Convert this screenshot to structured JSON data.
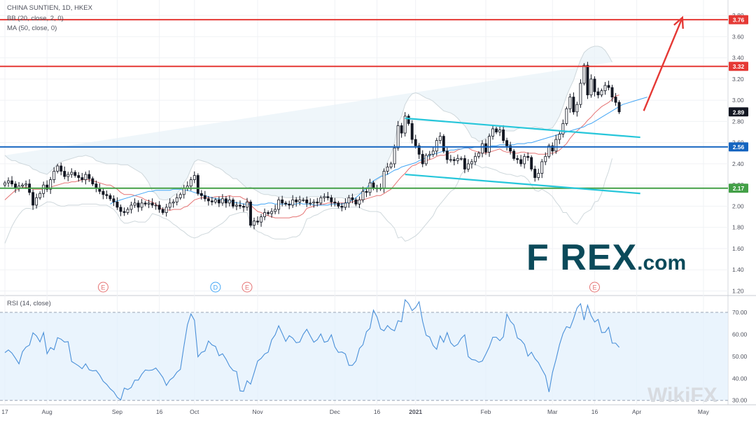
{
  "header": {
    "symbol_line": "CHINA SUNTIEN, 1D, HKEX",
    "bb_line": "BB (20, close, 2, 0)",
    "ma_line": "MA (50, close, 0)",
    "rsi_line": "RSI (14, close)"
  },
  "branding": {
    "logo_main": "F  REX",
    "logo_suffix": ".com",
    "watermark": "WikiFX"
  },
  "chart_data": [
    {
      "type": "candlestick",
      "title": "CHINA SUNTIEN, 1D, HKEX",
      "y_ticks": [
        "1.20",
        "1.40",
        "1.60",
        "1.80",
        "2.00",
        "2.20",
        "2.40",
        "2.60",
        "2.80",
        "3.00",
        "3.20",
        "3.40",
        "3.60",
        "3.80"
      ],
      "ylim": [
        1.17,
        3.88
      ],
      "x_ticks": [
        "17",
        "Aug",
        "Sep",
        "16",
        "Oct",
        "Nov",
        "Dec",
        "16",
        "2021",
        "Feb",
        "Mar",
        "16",
        "Apr",
        "May"
      ],
      "x_tick_index": [
        0,
        12,
        32,
        44,
        54,
        72,
        94,
        106,
        117,
        137,
        156,
        168,
        180,
        199
      ],
      "close": [
        2.22,
        2.24,
        2.21,
        2.17,
        2.19,
        2.2,
        2.21,
        2.13,
        2.01,
        2.08,
        2.12,
        2.2,
        2.16,
        2.25,
        2.33,
        2.38,
        2.33,
        2.28,
        2.3,
        2.32,
        2.29,
        2.27,
        2.25,
        2.3,
        2.26,
        2.21,
        2.17,
        2.14,
        2.11,
        2.1,
        2.07,
        2.04,
        1.99,
        1.95,
        1.94,
        1.97,
        2.01,
        2.03,
        1.99,
        2.03,
        2.02,
        2.03,
        2.01,
        2.01,
        1.97,
        1.94,
        1.99,
        2.03,
        2.04,
        2.08,
        2.11,
        2.17,
        2.19,
        2.25,
        2.29,
        2.12,
        2.1,
        2.07,
        2.05,
        2.04,
        2.06,
        2.03,
        2.07,
        2.03,
        2.06,
        2.0,
        2.01,
        2.0,
        1.99,
        2.04,
        1.82,
        1.86,
        1.85,
        1.9,
        1.94,
        1.93,
        1.95,
        1.97,
        2.06,
        2.03,
        2.02,
        2.01,
        2.06,
        2.04,
        2.06,
        2.06,
        2.03,
        2.03,
        2.04,
        2.03,
        2.08,
        2.09,
        2.08,
        2.04,
        2.03,
        2.0,
        1.99,
        2.03,
        2.08,
        2.06,
        2.02,
        2.06,
        2.14,
        2.13,
        2.22,
        2.17,
        2.17,
        2.17,
        2.33,
        2.37,
        2.4,
        2.55,
        2.76,
        2.69,
        2.85,
        2.78,
        2.63,
        2.57,
        2.49,
        2.4,
        2.48,
        2.49,
        2.52,
        2.62,
        2.66,
        2.52,
        2.44,
        2.44,
        2.43,
        2.45,
        2.45,
        2.35,
        2.4,
        2.42,
        2.47,
        2.5,
        2.59,
        2.51,
        2.66,
        2.73,
        2.7,
        2.72,
        2.62,
        2.57,
        2.52,
        2.45,
        2.44,
        2.4,
        2.47,
        2.46,
        2.35,
        2.27,
        2.31,
        2.42,
        2.47,
        2.57,
        2.52,
        2.63,
        2.68,
        2.78,
        2.92,
        3.03,
        2.89,
        2.96,
        3.16,
        3.33,
        3.05,
        3.2,
        3.08,
        3.05,
        3.09,
        3.14,
        3.12,
        3.03,
        2.98,
        2.89
      ],
      "bb_upper": [
        2.48,
        2.45,
        2.43,
        2.43,
        2.41,
        2.4,
        2.39,
        2.38,
        2.35,
        2.34,
        2.32,
        2.31,
        2.3,
        2.33,
        2.36,
        2.4,
        2.42,
        2.43,
        2.44,
        2.45,
        2.46,
        2.47,
        2.47,
        2.48,
        2.47,
        2.46,
        2.43,
        2.42,
        2.41,
        2.4,
        2.4,
        2.4,
        2.4,
        2.39,
        2.39,
        2.39,
        2.37,
        2.35,
        2.33,
        2.31,
        2.27,
        2.22,
        2.14,
        2.12,
        2.07,
        2.06,
        2.06,
        2.07,
        2.1,
        2.12,
        2.16,
        2.22,
        2.27,
        2.35,
        2.42,
        2.44,
        2.43,
        2.42,
        2.41,
        2.39,
        2.37,
        2.36,
        2.34,
        2.31,
        2.29,
        2.26,
        2.26,
        2.23,
        2.2,
        2.17,
        2.18,
        2.16,
        2.14,
        2.12,
        2.11,
        2.11,
        2.1,
        2.1,
        2.09,
        2.09,
        2.08,
        2.08,
        2.08,
        2.08,
        2.08,
        2.07,
        2.08,
        2.09,
        2.09,
        2.09,
        2.09,
        2.09,
        2.08,
        2.08,
        2.08,
        2.08,
        2.08,
        2.07,
        2.1,
        2.1,
        2.11,
        2.12,
        2.15,
        2.17,
        2.22,
        2.22,
        2.25,
        2.27,
        2.34,
        2.42,
        2.49,
        2.6,
        2.78,
        2.85,
        2.96,
        3.02,
        3.06,
        3.07,
        3.06,
        3.04,
        3.02,
        3.01,
        2.99,
        2.96,
        2.93,
        2.9,
        2.89,
        2.88,
        2.86,
        2.83,
        2.79,
        2.76,
        2.71,
        2.65,
        2.64,
        2.61,
        2.62,
        2.64,
        2.66,
        2.68,
        2.71,
        2.72,
        2.72,
        2.71,
        2.71,
        2.71,
        2.73,
        2.74,
        2.74,
        2.74,
        2.74,
        2.75,
        2.74,
        2.74,
        2.72,
        2.73,
        2.74,
        2.79,
        2.85,
        2.94,
        3.04,
        3.12,
        3.19,
        3.29,
        3.38,
        3.45,
        3.48,
        3.5,
        3.51,
        3.51,
        3.5,
        3.47,
        3.42,
        3.36
      ],
      "bb_lower": [
        1.65,
        1.73,
        1.81,
        1.87,
        1.92,
        1.96,
        1.98,
        1.98,
        1.97,
        1.99,
        2.0,
        2.02,
        2.04,
        2.04,
        2.03,
        2.01,
        2.0,
        2.0,
        2.01,
        2.01,
        2.01,
        2.01,
        2.02,
        2.02,
        2.02,
        2.02,
        2.02,
        2.01,
        2.01,
        2.01,
        1.99,
        1.97,
        1.93,
        1.87,
        1.84,
        1.84,
        1.85,
        1.86,
        1.85,
        1.85,
        1.85,
        1.88,
        1.93,
        1.92,
        1.91,
        1.89,
        1.88,
        1.86,
        1.83,
        1.81,
        1.78,
        1.76,
        1.73,
        1.71,
        1.7,
        1.71,
        1.73,
        1.74,
        1.75,
        1.78,
        1.8,
        1.82,
        1.84,
        1.87,
        1.91,
        1.92,
        1.93,
        1.94,
        1.94,
        1.94,
        1.84,
        1.79,
        1.76,
        1.75,
        1.73,
        1.72,
        1.7,
        1.69,
        1.69,
        1.69,
        1.69,
        1.7,
        1.71,
        1.71,
        1.73,
        1.79,
        1.88,
        1.89,
        1.91,
        1.92,
        1.94,
        1.96,
        1.97,
        1.98,
        1.98,
        1.98,
        1.98,
        1.99,
        1.99,
        1.99,
        1.99,
        1.99,
        1.97,
        1.96,
        1.95,
        1.95,
        1.95,
        1.94,
        1.9,
        1.86,
        1.83,
        1.79,
        1.7,
        1.71,
        1.67,
        1.68,
        1.7,
        1.72,
        1.75,
        1.79,
        1.83,
        1.87,
        1.91,
        1.98,
        2.02,
        2.06,
        2.1,
        2.14,
        2.16,
        2.22,
        2.3,
        2.34,
        2.39,
        2.4,
        2.39,
        2.38,
        2.36,
        2.37,
        2.36,
        2.35,
        2.34,
        2.32,
        2.31,
        2.3,
        2.3,
        2.29,
        2.28,
        2.29,
        2.28,
        2.25,
        2.2,
        2.15,
        2.14,
        2.16,
        2.14,
        2.12,
        2.09,
        2.04,
        2.0,
        1.94,
        1.94,
        1.89,
        1.85,
        1.83,
        1.88,
        1.93,
        1.95,
        1.97,
        2.04,
        2.05,
        2.12,
        2.24,
        2.33,
        2.45
      ],
      "ma20": [
        2.06,
        2.09,
        2.12,
        2.15,
        2.16,
        2.18,
        2.18,
        2.18,
        2.16,
        2.16,
        2.16,
        2.16,
        2.17,
        2.18,
        2.19,
        2.2,
        2.21,
        2.22,
        2.22,
        2.23,
        2.23,
        2.24,
        2.25,
        2.25,
        2.25,
        2.24,
        2.23,
        2.22,
        2.21,
        2.2,
        2.2,
        2.18,
        2.16,
        2.13,
        2.11,
        2.11,
        2.11,
        2.1,
        2.09,
        2.08,
        2.06,
        2.05,
        2.04,
        2.02,
        1.99,
        1.97,
        1.97,
        1.96,
        1.97,
        1.97,
        1.97,
        1.99,
        2.0,
        2.03,
        2.06,
        2.07,
        2.08,
        2.08,
        2.08,
        2.08,
        2.09,
        2.09,
        2.09,
        2.09,
        2.1,
        2.09,
        2.09,
        2.09,
        2.07,
        2.06,
        2.01,
        1.98,
        1.95,
        1.94,
        1.92,
        1.91,
        1.9,
        1.89,
        1.89,
        1.89,
        1.89,
        1.89,
        1.9,
        1.9,
        1.91,
        1.93,
        1.98,
        1.99,
        2.0,
        2.01,
        2.02,
        2.02,
        2.03,
        2.03,
        2.03,
        2.03,
        2.03,
        2.03,
        2.04,
        2.04,
        2.05,
        2.06,
        2.06,
        2.07,
        2.08,
        2.09,
        2.1,
        2.1,
        2.12,
        2.14,
        2.16,
        2.2,
        2.24,
        2.28,
        2.31,
        2.35,
        2.38,
        2.39,
        2.41,
        2.42,
        2.43,
        2.44,
        2.45,
        2.47,
        2.48,
        2.48,
        2.49,
        2.51,
        2.51,
        2.53,
        2.54,
        2.55,
        2.55,
        2.53,
        2.52,
        2.51,
        2.5,
        2.5,
        2.51,
        2.52,
        2.53,
        2.54,
        2.52,
        2.51,
        2.51,
        2.5,
        2.5,
        2.51,
        2.51,
        2.5,
        2.5,
        2.5,
        2.49,
        2.49,
        2.49,
        2.5,
        2.5,
        2.51,
        2.53,
        2.56,
        2.59,
        2.64,
        2.68,
        2.71,
        2.74,
        2.77,
        2.81,
        2.84,
        2.88,
        2.91,
        2.94,
        2.96,
        2.98,
        3.01,
        3.04,
        3.05
      ],
      "ma50_start_index": 30,
      "ma50": [
        2.02,
        2.04,
        2.05,
        2.06,
        2.07,
        2.08,
        2.09,
        2.1,
        2.11,
        2.12,
        2.13,
        2.14,
        2.14,
        2.15,
        2.15,
        2.15,
        2.15,
        2.15,
        2.16,
        2.16,
        2.16,
        2.15,
        2.15,
        2.14,
        2.13,
        2.12,
        2.11,
        2.1,
        2.09,
        2.08,
        2.07,
        2.07,
        2.06,
        2.05,
        2.05,
        2.04,
        2.03,
        2.03,
        2.02,
        2.02,
        2.02,
        2.01,
        2.01,
        2.02,
        2.02,
        2.03,
        2.03,
        2.02,
        2.02,
        2.02,
        2.02,
        2.02,
        2.02,
        2.02,
        2.03,
        2.02,
        2.02,
        2.02,
        2.01,
        2.01,
        2.01,
        2.01,
        2.01,
        2.02,
        2.02,
        2.02,
        2.02,
        2.03,
        2.04,
        2.06,
        2.08,
        2.11,
        2.14,
        2.17,
        2.21,
        2.24,
        2.26,
        2.28,
        2.29,
        2.3,
        2.32,
        2.34,
        2.35,
        2.37,
        2.38,
        2.39,
        2.4,
        2.41,
        2.43,
        2.44,
        2.46,
        2.48,
        2.49,
        2.5,
        2.51,
        2.52,
        2.52,
        2.53,
        2.53,
        2.54,
        2.54,
        2.55,
        2.55,
        2.55,
        2.56,
        2.56,
        2.57,
        2.57,
        2.57,
        2.57,
        2.57,
        2.58,
        2.58,
        2.58,
        2.58,
        2.58,
        2.59,
        2.59,
        2.59,
        2.6,
        2.6,
        2.61,
        2.62,
        2.63,
        2.64,
        2.65,
        2.66,
        2.67,
        2.68,
        2.69,
        2.7,
        2.71,
        2.72,
        2.73,
        2.74,
        2.75,
        2.77,
        2.78,
        2.8,
        2.82,
        2.84,
        2.86,
        2.88,
        2.9,
        2.92,
        2.94,
        2.96,
        2.97,
        2.98,
        2.99,
        3.0,
        3.01,
        3.02,
        3.03
      ],
      "levels": [
        {
          "label": "3.76",
          "value": 3.76,
          "color": "#e53935"
        },
        {
          "label": "3.32",
          "value": 3.32,
          "color": "#e53935"
        },
        {
          "label": "2.56",
          "value": 2.56,
          "color": "#1565c0"
        },
        {
          "label": "2.17",
          "value": 2.17,
          "color": "#43a047"
        }
      ],
      "last_price_label": "2.89",
      "channel": {
        "upper": [
          [
            114,
            2.83
          ],
          [
            181,
            2.65
          ]
        ],
        "lower": [
          [
            114,
            2.3
          ],
          [
            181,
            2.12
          ]
        ],
        "color": "#26c6da"
      },
      "projection_arrow": {
        "from": [
          182,
          2.9
        ],
        "to": [
          193,
          3.78
        ],
        "color": "#e53935"
      },
      "event_markers": [
        {
          "label": "E",
          "index": 28,
          "color": "#e57373"
        },
        {
          "label": "D",
          "index": 60,
          "color": "#42a5f5"
        },
        {
          "label": "E",
          "index": 69,
          "color": "#e57373"
        },
        {
          "label": "E",
          "index": 168,
          "color": "#e57373"
        }
      ],
      "grid": true
    },
    {
      "type": "line",
      "title": "RSI (14, close)",
      "y_ticks": [
        "30.00",
        "40.00",
        "50.00",
        "60.00",
        "70.00"
      ],
      "ylim": [
        28,
        77
      ],
      "band": [
        30,
        70
      ],
      "values": [
        51.7,
        52.9,
        51.5,
        49.2,
        46.6,
        52.1,
        54.2,
        55.1,
        60.7,
        59.3,
        56.6,
        60.8,
        51.2,
        54.0,
        53.0,
        58.5,
        57.8,
        56.5,
        56.7,
        47.7,
        46.7,
        45.7,
        44.4,
        46.6,
        43.9,
        43.4,
        43.6,
        41.5,
        38.7,
        37.3,
        35.3,
        33.9,
        31.4,
        30.2,
        35.6,
        34.9,
        35.9,
        39.2,
        39.2,
        41.9,
        43.8,
        43.6,
        43.8,
        44.7,
        42.7,
        40.4,
        36.8,
        39.3,
        40.5,
        42.8,
        44.1,
        54.5,
        64.4,
        69.3,
        66.4,
        49.8,
        51.8,
        52.4,
        57.0,
        55.2,
        54.5,
        50.3,
        51.2,
        48.7,
        45.6,
        43.6,
        43.1,
        34.3,
        34.1,
        38.9,
        37.4,
        42.5,
        47.9,
        49.1,
        51.1,
        51.9,
        57.5,
        59.8,
        63.9,
        60.4,
        56.8,
        59.4,
        58.3,
        56.2,
        56.5,
        60.0,
        62.3,
        59.3,
        56.4,
        57.6,
        60.2,
        56.4,
        56.9,
        59.8,
        54.3,
        51.8,
        52.0,
        51.1,
        45.9,
        45.9,
        47.9,
        53.6,
        55.3,
        61.2,
        62.7,
        71.0,
        67.9,
        62.5,
        61.6,
        64.0,
        62.4,
        61.6,
        66.2,
        65.7,
        75.7,
        74.0,
        70.8,
        72.2,
        74.8,
        66.0,
        59.6,
        58.8,
        54.9,
        53.2,
        59.3,
        56.4,
        60.8,
        56.2,
        54.5,
        55.5,
        58.2,
        59.8,
        49.9,
        48.6,
        48.3,
        47.3,
        47.9,
        51.0,
        54.3,
        58.7,
        58.7,
        57.1,
        58.9,
        69.2,
        66.0,
        64.3,
        58.4,
        57.4,
        55.5,
        50.1,
        51.9,
        49.0,
        47.2,
        44.1,
        41.2,
        33.8,
        42.7,
        48.6,
        55.3,
        60.4,
        63.5,
        62.9,
        67.1,
        72.0,
        73.9,
        66.5,
        73.2,
        68.5,
        65.6,
        66.8,
        60.8,
        60.9,
        63.2,
        56.0,
        56.0,
        54.1
      ],
      "grid": true
    }
  ]
}
